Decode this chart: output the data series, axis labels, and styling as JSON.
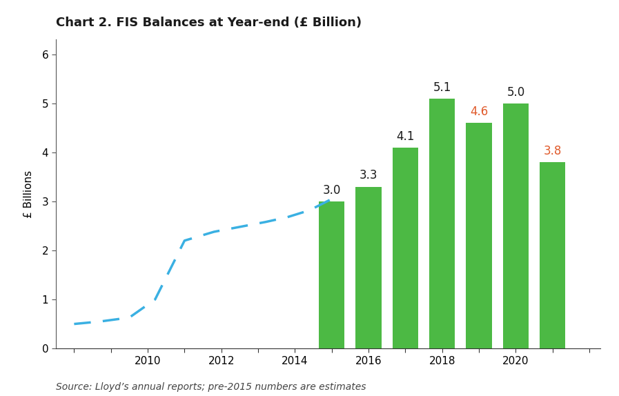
{
  "title": "Chart 2. FIS Balances at Year-end (£ Billion)",
  "ylabel": "£ Billions",
  "source": "Source: Lloyd’s annual reports; pre-2015 numbers are estimates",
  "ylim": [
    0,
    6.3
  ],
  "yticks": [
    0,
    1,
    2,
    3,
    4,
    5,
    6
  ],
  "background_color": "#ffffff",
  "line_x": [
    2008.0,
    2008.7,
    2009.5,
    2010.2,
    2011.0,
    2011.8,
    2012.5,
    2013.2,
    2013.8,
    2014.4,
    2015.0
  ],
  "line_y": [
    0.5,
    0.55,
    0.63,
    1.0,
    2.2,
    2.38,
    2.48,
    2.58,
    2.68,
    2.82,
    3.05
  ],
  "line_color": "#3AB0E2",
  "bar_years": [
    2015,
    2016,
    2017,
    2018,
    2019,
    2020,
    2021
  ],
  "bar_values": [
    3.0,
    3.3,
    4.1,
    5.1,
    4.6,
    5.0,
    3.8
  ],
  "bar_color": "#4CB944",
  "bar_label_colors": [
    "#1a1a1a",
    "#1a1a1a",
    "#1a1a1a",
    "#1a1a1a",
    "#E05A2B",
    "#1a1a1a",
    "#E05A2B"
  ],
  "bar_labels": [
    "3.0",
    "3.3",
    "4.1",
    "5.1",
    "4.6",
    "5.0",
    "3.8"
  ],
  "xtick_major": [
    2010,
    2012,
    2014,
    2016,
    2018,
    2020
  ],
  "xtick_all": [
    2008,
    2009,
    2010,
    2011,
    2012,
    2013,
    2014,
    2015,
    2016,
    2017,
    2018,
    2019,
    2020,
    2021,
    2022
  ],
  "title_fontsize": 13,
  "axis_fontsize": 11,
  "label_fontsize": 12,
  "source_fontsize": 10
}
